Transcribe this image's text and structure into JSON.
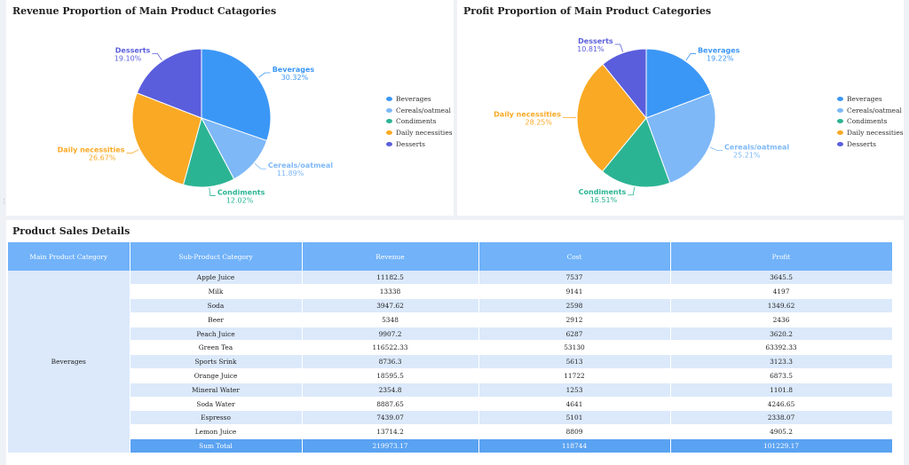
{
  "revenue_chart": {
    "title": "Revenue Proportion of Main Product Catagories",
    "chart_data": {
      "type": "pie",
      "title": "Revenue Proportion of Main Product Catagories",
      "slices": [
        {
          "name": "Beverages",
          "pct": "30.32%",
          "value": 30.32,
          "color": "#3b97f6"
        },
        {
          "name": "Cereals/oatmeal",
          "pct": "11.89%",
          "value": 11.89,
          "color": "#7eb8f7"
        },
        {
          "name": "Condiments",
          "pct": "12.02%",
          "value": 12.02,
          "color": "#2bb494"
        },
        {
          "name": "Daily necessities",
          "pct": "26.67%",
          "value": 26.67,
          "color": "#f9a924"
        },
        {
          "name": "Desserts",
          "pct": "19.10%",
          "value": 19.1,
          "color": "#5a5edc"
        }
      ]
    }
  },
  "profit_chart": {
    "title": "Profit Proportion of Main Product Categories",
    "chart_data": {
      "type": "pie",
      "title": "Profit Proportion of Main Product Categories",
      "slices": [
        {
          "name": "Beverages",
          "pct": "19.22%",
          "value": 19.22,
          "color": "#3b97f6"
        },
        {
          "name": "Cereals/oatmeal",
          "pct": "25.21%",
          "value": 25.21,
          "color": "#7eb8f7"
        },
        {
          "name": "Condiments",
          "pct": "16.51%",
          "value": 16.51,
          "color": "#2bb494"
        },
        {
          "name": "Daily necessities",
          "pct": "28.25%",
          "value": 28.25,
          "color": "#f9a924"
        },
        {
          "name": "Desserts",
          "pct": "10.81%",
          "value": 10.81,
          "color": "#5a5edc"
        }
      ]
    }
  },
  "legend": [
    {
      "label": "Beverages",
      "color": "#3b97f6"
    },
    {
      "label": "Cereals/oatmeal",
      "color": "#7eb8f7"
    },
    {
      "label": "Condiments",
      "color": "#2bb494"
    },
    {
      "label": "Daily necessities",
      "color": "#f9a924"
    },
    {
      "label": "Desserts",
      "color": "#5a5edc"
    }
  ],
  "table": {
    "title": "Product Sales Details",
    "headers": [
      "Main Product Category",
      "Sub-Product Category",
      "Revenue",
      "Cost",
      "Profit"
    ],
    "main_category": "Beverages",
    "rows": [
      [
        "Apple Juice",
        "11182.5",
        "7537",
        "3645.5"
      ],
      [
        "Milk",
        "13338",
        "9141",
        "4197"
      ],
      [
        "Soda",
        "3947.62",
        "2598",
        "1349.62"
      ],
      [
        "Beer",
        "5348",
        "2912",
        "2436"
      ],
      [
        "Peach Juice",
        "9907.2",
        "6287",
        "3620.2"
      ],
      [
        "Green Tea",
        "116522.33",
        "53130",
        "63392.33"
      ],
      [
        "Sports Srink",
        "8736.3",
        "5613",
        "3123.3"
      ],
      [
        "Orange Juice",
        "18595.5",
        "11722",
        "6873.5"
      ],
      [
        "Mineral Water",
        "2354.8",
        "1253",
        "1101.8"
      ],
      [
        "Soda Water",
        "8887.65",
        "4641",
        "4246.65"
      ],
      [
        "Espresso",
        "7439.07",
        "5101",
        "2338.07"
      ],
      [
        "Lemon Juice",
        "13714.2",
        "8809",
        "4905.2"
      ]
    ],
    "total": [
      "Sum Total",
      "219973.17",
      "118744",
      "101229.17"
    ]
  }
}
